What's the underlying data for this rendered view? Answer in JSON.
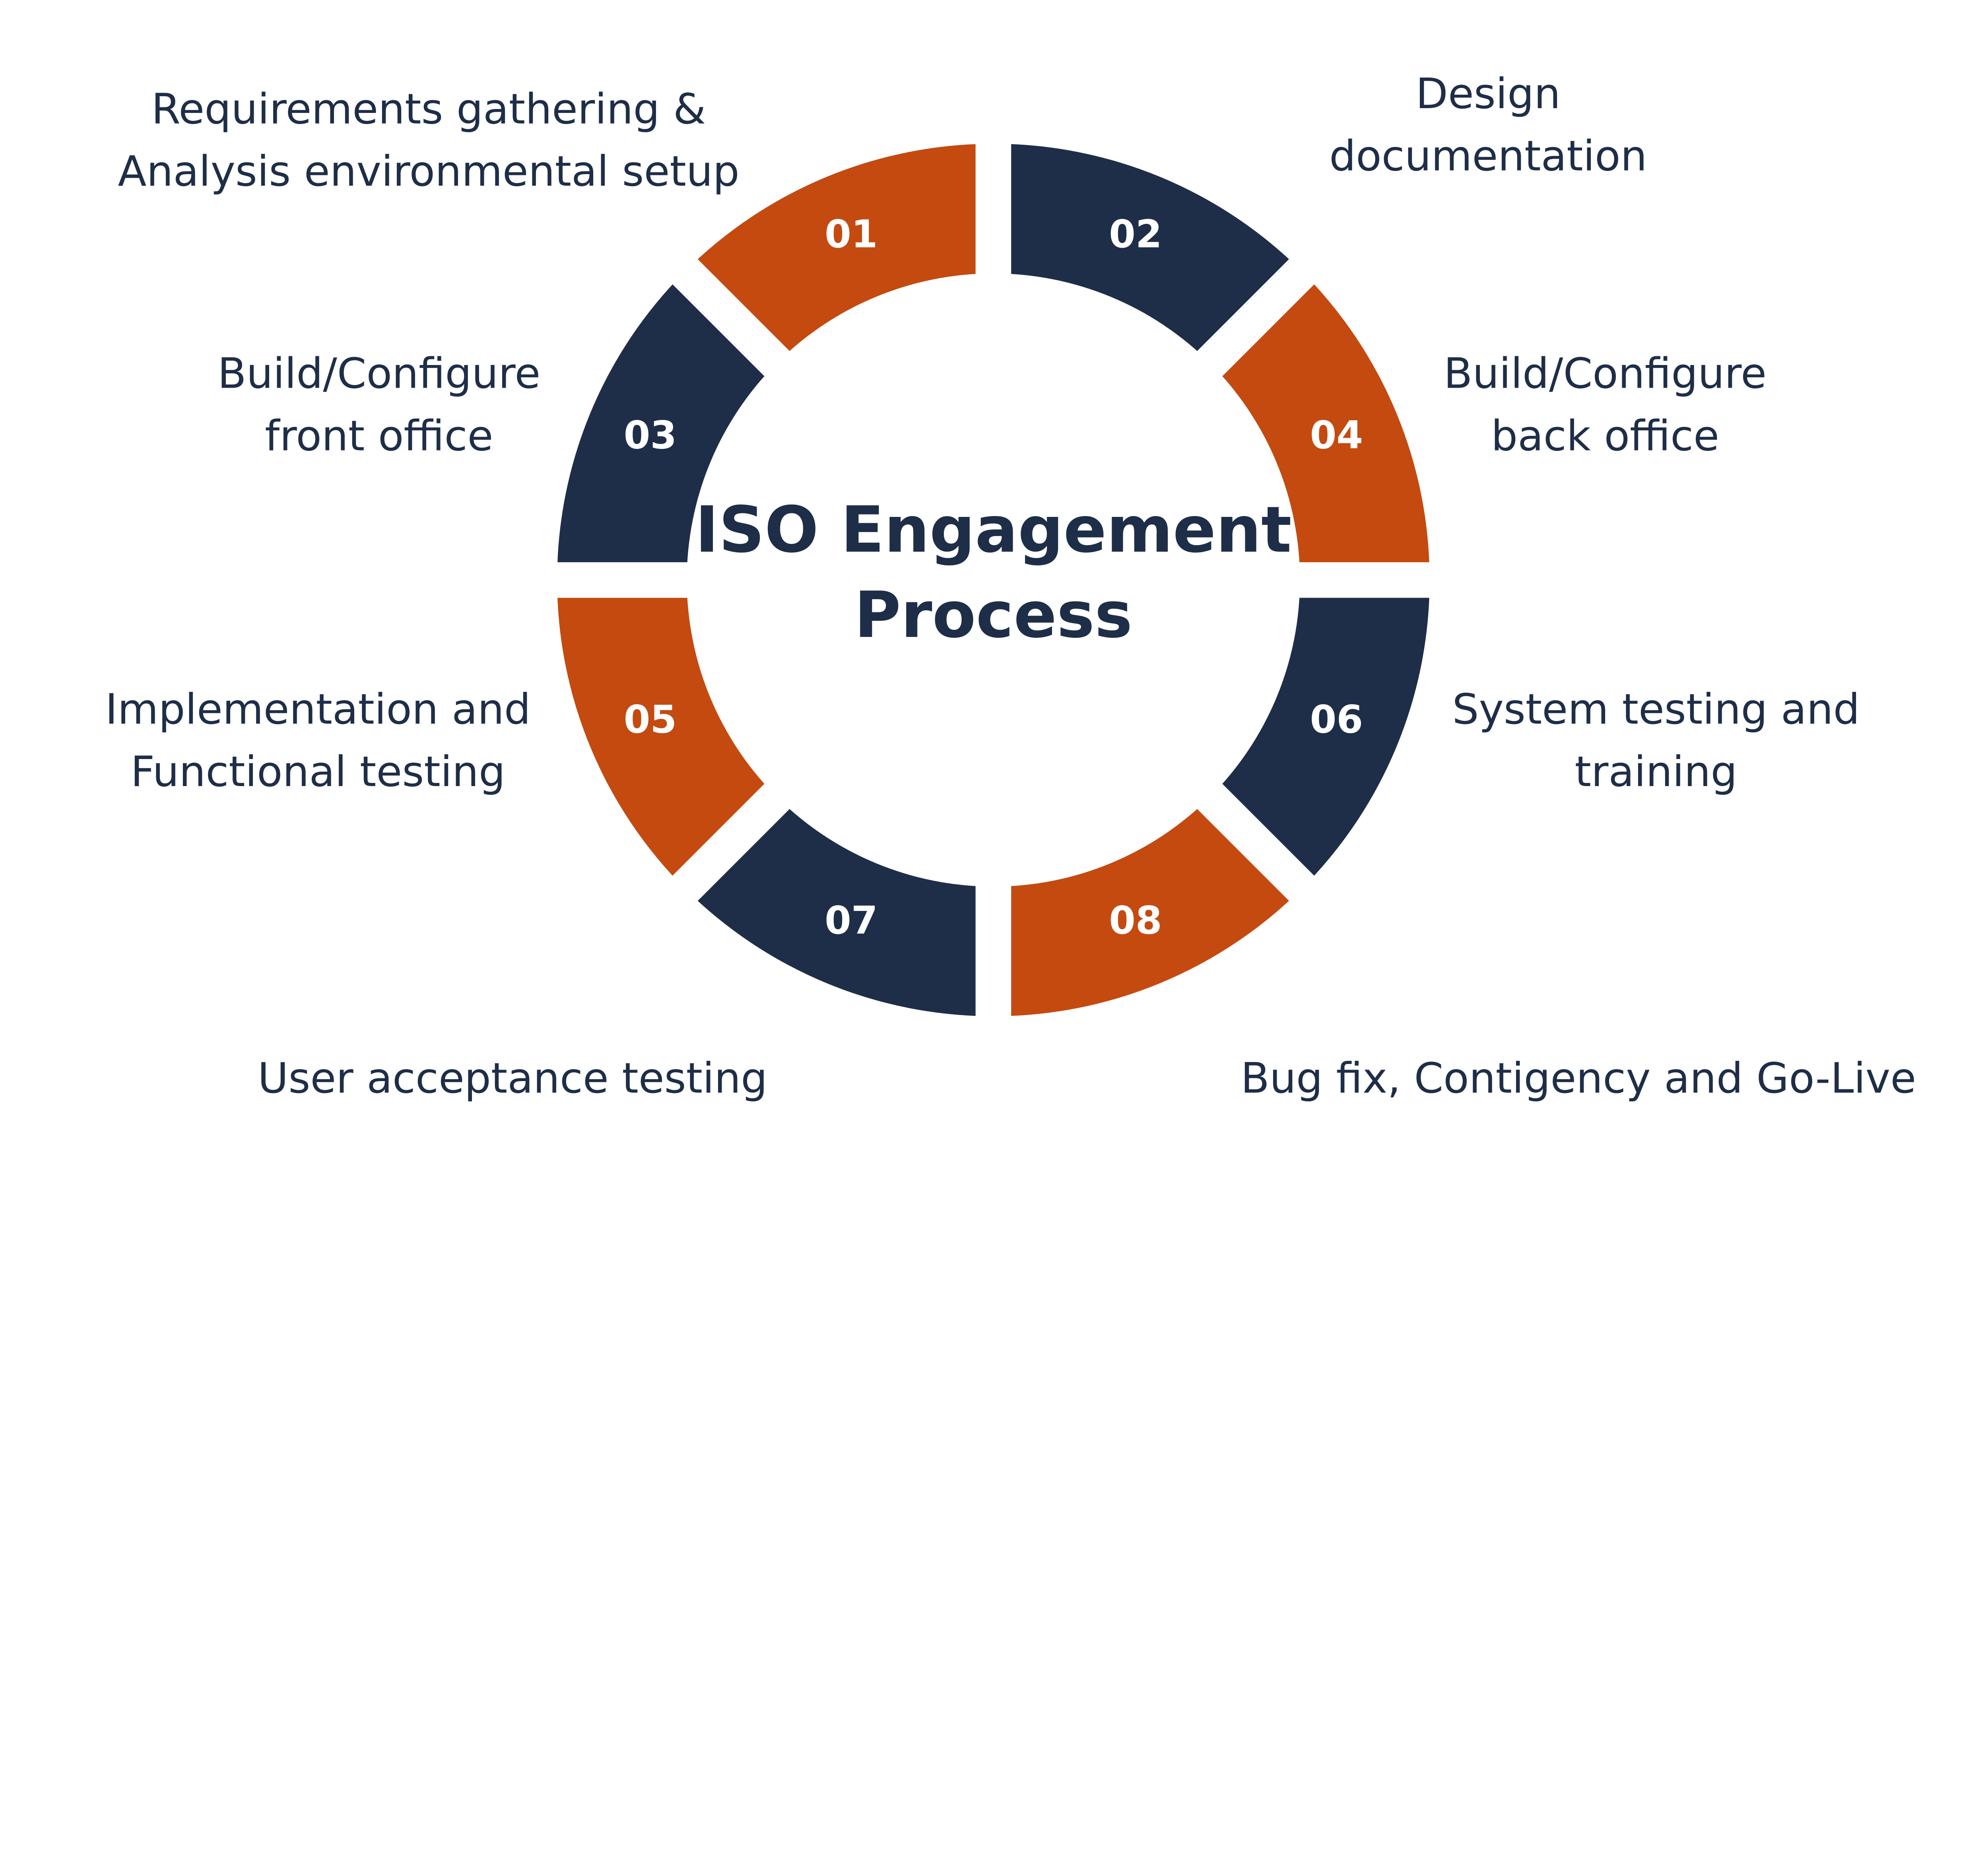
{
  "title": {
    "line1": "ISO Engagement",
    "line2": "Process"
  },
  "colors": {
    "orange": "#c44a10",
    "navy": "#1e2e48"
  },
  "steps": [
    {
      "number": "01",
      "color": "orange",
      "label": [
        "Requirements gathering &",
        "Analysis environmental setup"
      ]
    },
    {
      "number": "02",
      "color": "navy",
      "label": [
        "Design",
        "documentation"
      ]
    },
    {
      "number": "03",
      "color": "navy",
      "label": [
        "Build/Configure",
        "front office"
      ]
    },
    {
      "number": "04",
      "color": "orange",
      "label": [
        "Build/Configure",
        "back office"
      ]
    },
    {
      "number": "05",
      "color": "orange",
      "label": [
        "Implementation and",
        "Functional testing"
      ]
    },
    {
      "number": "06",
      "color": "navy",
      "label": [
        "System testing and",
        "training"
      ]
    },
    {
      "number": "07",
      "color": "navy",
      "label": [
        "User acceptance testing"
      ]
    },
    {
      "number": "08",
      "color": "orange",
      "label": [
        "Bug fix, Contigency and Go-Live"
      ]
    }
  ]
}
